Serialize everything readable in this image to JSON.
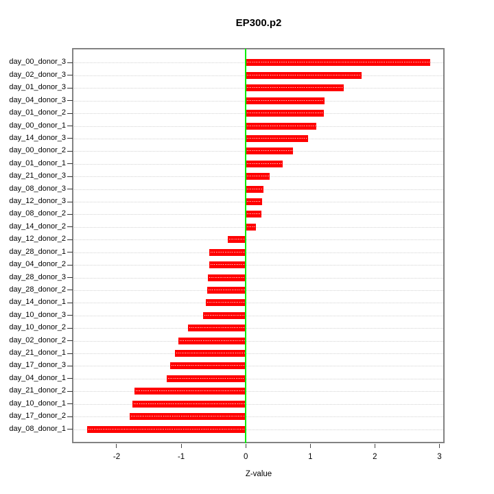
{
  "chart_data": {
    "type": "bar",
    "orientation": "horizontal",
    "title": "EP300.p2",
    "xlabel": "Z-value",
    "ylabel": "",
    "xlim": [
      -2.68,
      3.08
    ],
    "x_ticks": [
      -2,
      -1,
      0,
      1,
      2,
      3
    ],
    "grid": "dotted-horizontal",
    "legend_position": "none",
    "bar_color": "#ff0000",
    "bar_centerline_color": "#ffffff",
    "zero_line_color": "#00ee00",
    "grid_color": "#d2d2d2",
    "box_color": "#828282",
    "categories": [
      "day_00_donor_3",
      "day_02_donor_3",
      "day_01_donor_3",
      "day_04_donor_3",
      "day_01_donor_2",
      "day_00_donor_1",
      "day_14_donor_3",
      "day_00_donor_2",
      "day_01_donor_1",
      "day_21_donor_3",
      "day_08_donor_3",
      "day_12_donor_3",
      "day_08_donor_2",
      "day_14_donor_2",
      "day_12_donor_2",
      "day_28_donor_1",
      "day_04_donor_2",
      "day_28_donor_3",
      "day_28_donor_2",
      "day_14_donor_1",
      "day_10_donor_3",
      "day_10_donor_2",
      "day_02_donor_2",
      "day_21_donor_1",
      "day_17_donor_3",
      "day_04_donor_1",
      "day_21_donor_2",
      "day_10_donor_1",
      "day_17_donor_2",
      "day_08_donor_1"
    ],
    "values": [
      2.86,
      1.79,
      1.52,
      1.22,
      1.21,
      1.09,
      0.96,
      0.73,
      0.57,
      0.37,
      0.27,
      0.25,
      0.24,
      0.16,
      -0.28,
      -0.56,
      -0.57,
      -0.59,
      -0.6,
      -0.62,
      -0.66,
      -0.89,
      -1.04,
      -1.1,
      -1.17,
      -1.22,
      -1.72,
      -1.76,
      -1.8,
      -2.46
    ]
  }
}
